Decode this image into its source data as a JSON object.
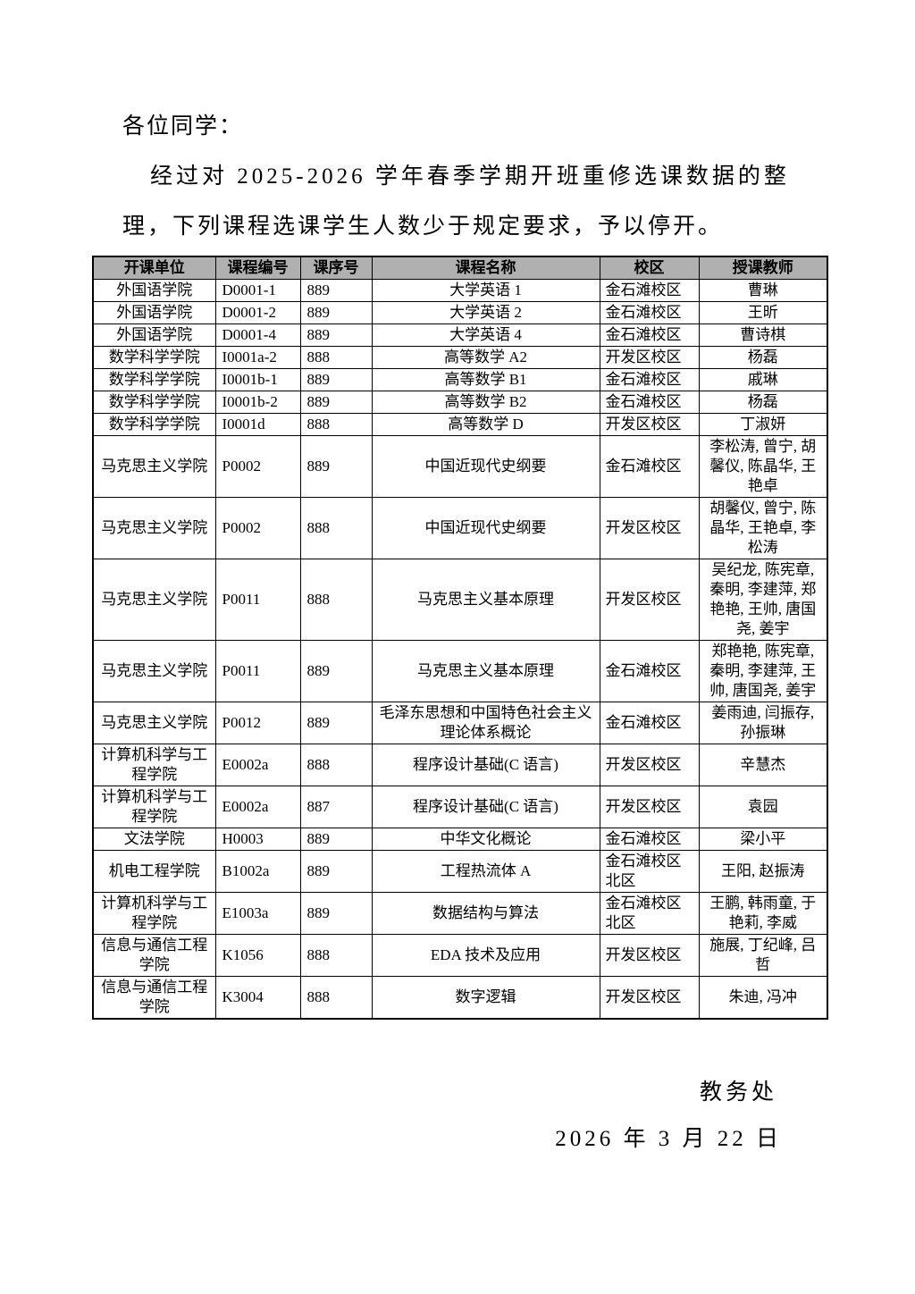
{
  "intro": {
    "salutation": "各位同学：",
    "lines": [
      "经过对 2025-2026 学年春季学期开班重修选课数据的整",
      "理，下列课程选课学生人数少于规定要求，予以停开。"
    ]
  },
  "table": {
    "header_bg": "#b0b0b0",
    "headers": [
      "开课单位",
      "课程编号",
      "课序号",
      "课程名称",
      "校区",
      "授课教师"
    ],
    "rows": [
      [
        "外国语学院",
        "D0001-1",
        "889",
        "大学英语 1",
        "金石滩校区",
        "曹琳"
      ],
      [
        "外国语学院",
        "D0001-2",
        "889",
        "大学英语 2",
        "金石滩校区",
        "王昕"
      ],
      [
        "外国语学院",
        "D0001-4",
        "889",
        "大学英语 4",
        "金石滩校区",
        "曹诗棋"
      ],
      [
        "数学科学学院",
        "I0001a-2",
        "888",
        "高等数学 A2",
        "开发区校区",
        "杨磊"
      ],
      [
        "数学科学学院",
        "I0001b-1",
        "889",
        "高等数学 B1",
        "金石滩校区",
        "戚琳"
      ],
      [
        "数学科学学院",
        "I0001b-2",
        "889",
        "高等数学 B2",
        "金石滩校区",
        "杨磊"
      ],
      [
        "数学科学学院",
        "I0001d",
        "888",
        "高等数学 D",
        "开发区校区",
        "丁淑妍"
      ],
      [
        "马克思主义学院",
        "P0002",
        "889",
        "中国近现代史纲要",
        "金石滩校区",
        "李松涛, 曾宁, 胡馨仪, 陈晶华, 王艳卓"
      ],
      [
        "马克思主义学院",
        "P0002",
        "888",
        "中国近现代史纲要",
        "开发区校区",
        "胡馨仪, 曾宁, 陈晶华, 王艳卓, 李松涛"
      ],
      [
        "马克思主义学院",
        "P0011",
        "888",
        "马克思主义基本原理",
        "开发区校区",
        "吴纪龙, 陈宪章, 秦明, 李建萍, 郑艳艳, 王帅, 唐国尧, 姜宇"
      ],
      [
        "马克思主义学院",
        "P0011",
        "889",
        "马克思主义基本原理",
        "金石滩校区",
        "郑艳艳, 陈宪章, 秦明, 李建萍, 王帅, 唐国尧, 姜宇"
      ],
      [
        "马克思主义学院",
        "P0012",
        "889",
        "毛泽东思想和中国特色社会主义理论体系概论",
        "金石滩校区",
        "姜雨迪, 闫振存, 孙振琳"
      ],
      [
        "计算机科学与工程学院",
        "E0002a",
        "888",
        "程序设计基础(C 语言)",
        "开发区校区",
        "辛慧杰"
      ],
      [
        "计算机科学与工程学院",
        "E0002a",
        "887",
        "程序设计基础(C 语言)",
        "开发区校区",
        "袁园"
      ],
      [
        "文法学院",
        "H0003",
        "889",
        "中华文化概论",
        "金石滩校区",
        "梁小平"
      ],
      [
        "机电工程学院",
        "B1002a",
        "889",
        "工程热流体 A",
        "金石滩校区北区",
        "王阳, 赵振涛"
      ],
      [
        "计算机科学与工程学院",
        "E1003a",
        "889",
        "数据结构与算法",
        "金石滩校区北区",
        "王鹏, 韩雨童, 于艳莉, 李威"
      ],
      [
        "信息与通信工程学院",
        "K1056",
        "888",
        "EDA 技术及应用",
        "开发区校区",
        "施展, 丁纪峰, 吕哲"
      ],
      [
        "信息与通信工程学院",
        "K3004",
        "888",
        "数字逻辑",
        "开发区校区",
        "朱迪, 冯冲"
      ]
    ]
  },
  "footer": {
    "signature": "教务处",
    "date": "2026 年 3 月 22 日"
  }
}
